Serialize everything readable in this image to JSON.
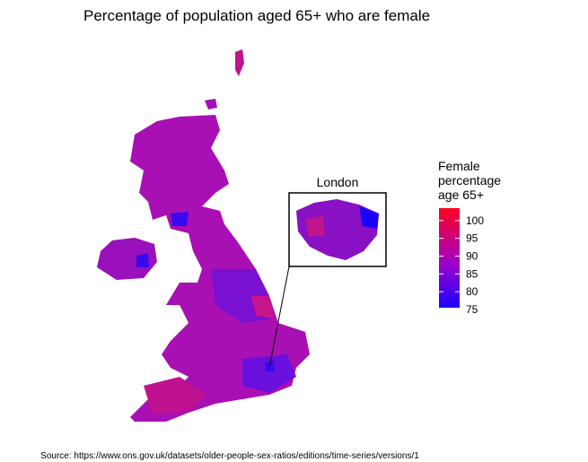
{
  "title": "Percentage of population aged 65+ who are female",
  "inset": {
    "label": "London"
  },
  "legend": {
    "title_lines": [
      "Female",
      "percentage",
      "age 65+"
    ],
    "ticks": [
      75,
      80,
      85,
      90,
      95,
      100
    ],
    "lim": [
      75.5,
      103.5
    ],
    "low_color": "#1a00ff",
    "mid_color": "#a000c8",
    "high_color": "#ff0022"
  },
  "source": "Source: https://www.ons.gov.uk/datasets/older-people-sex-ratios/editions/time-series/versions/1"
}
